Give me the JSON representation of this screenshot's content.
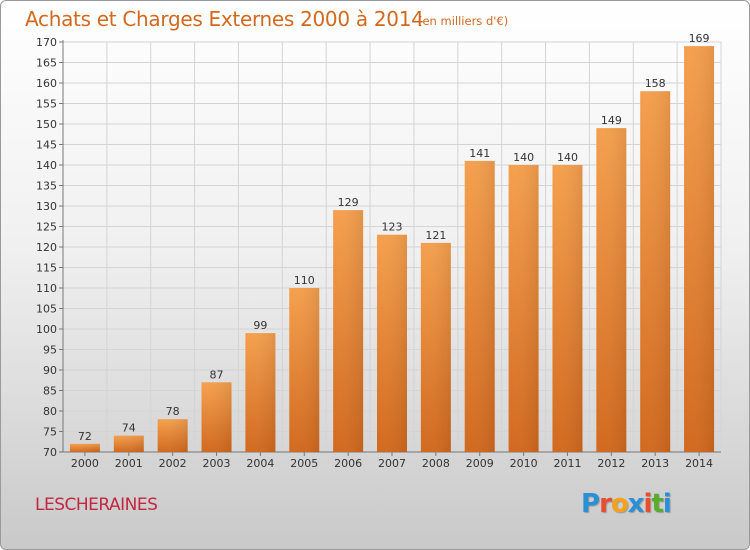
{
  "header": {
    "title": "Achats et Charges Externes 2000 à 2014",
    "unit": "(en milliers d'€)"
  },
  "footer": {
    "commune": "LESCHERAINES",
    "logo_text": "Proxiti"
  },
  "colors": {
    "title": "#d2691e",
    "commune": "#c3273f",
    "bar_top": "#f5a04e",
    "bar_bottom": "#d2691e"
  },
  "chart_data": {
    "type": "bar",
    "categories": [
      "2000",
      "2001",
      "2002",
      "2003",
      "2004",
      "2005",
      "2006",
      "2007",
      "2008",
      "2009",
      "2010",
      "2011",
      "2012",
      "2013",
      "2014"
    ],
    "values": [
      72,
      74,
      78,
      87,
      99,
      110,
      129,
      123,
      121,
      141,
      140,
      140,
      149,
      158,
      169
    ],
    "title": "Achats et Charges Externes 2000 à 2014",
    "ylim": [
      70,
      170
    ],
    "ytick_step": 5,
    "grid": true
  }
}
